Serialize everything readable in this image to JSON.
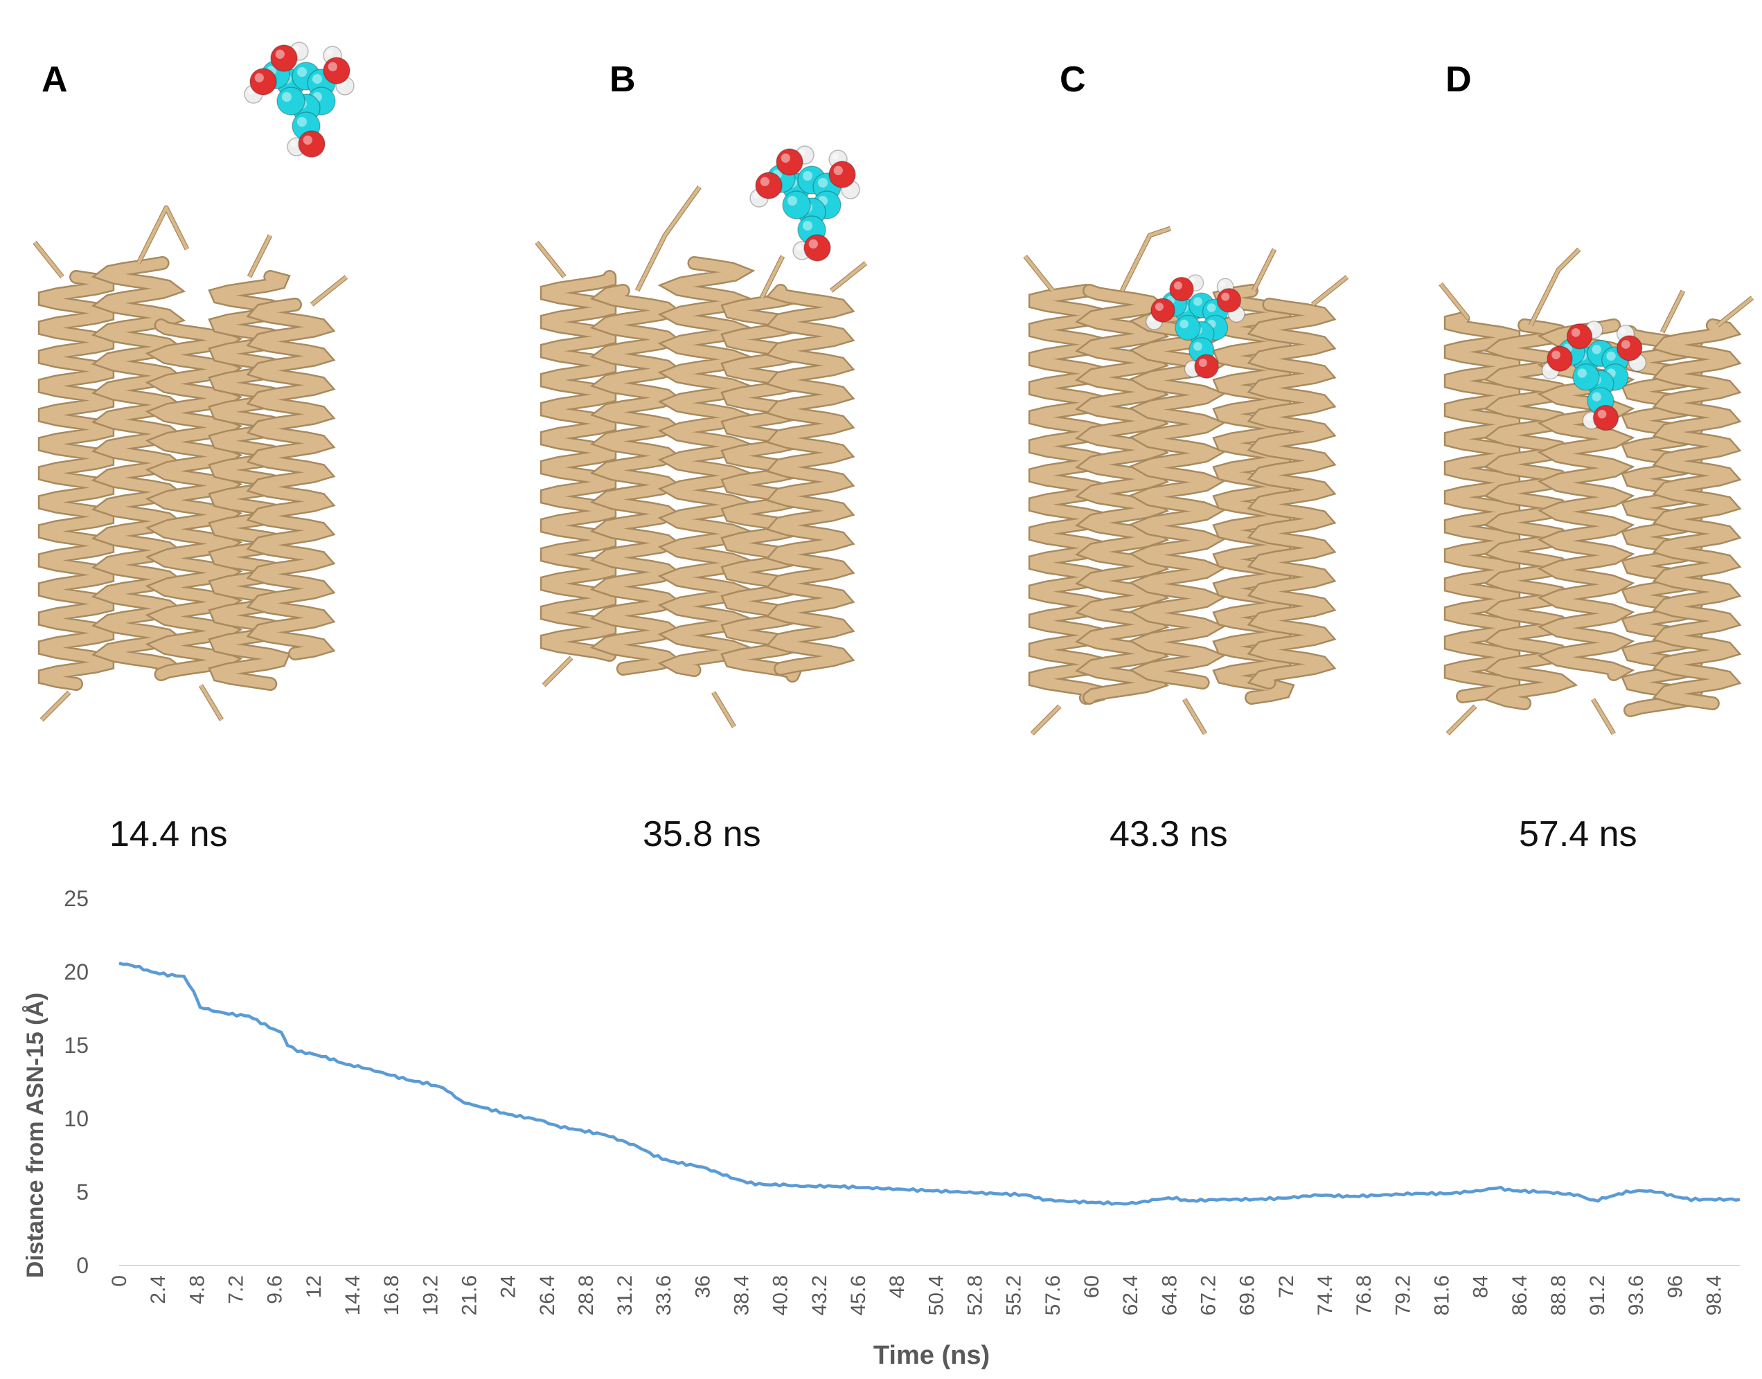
{
  "panels": [
    {
      "letter": "A",
      "time": "14.4 ns"
    },
    {
      "letter": "B",
      "time": "35.8 ns"
    },
    {
      "letter": "C",
      "time": "43.3 ns"
    },
    {
      "letter": "D",
      "time": "57.4 ns"
    }
  ],
  "colors": {
    "ribbon": "#d9b98c",
    "ribbon_edge": "#a88a5e",
    "carbon": "#22d3df",
    "oxygen": "#e03030",
    "hydrogen": "#eeeeee",
    "line": "#5b9bd5",
    "axis_text": "#595959"
  },
  "chart_data": {
    "type": "line",
    "xlabel": "Time (ns)",
    "ylabel": "Distance from ASN-15 (Å)",
    "ylim": [
      0,
      25
    ],
    "yticks": [
      0,
      5,
      10,
      15,
      20,
      25
    ],
    "xlim": [
      0,
      100
    ],
    "xticks": [
      "0",
      "2.4",
      "4.8",
      "7.2",
      "9.6",
      "12",
      "14.4",
      "16.8",
      "19.2",
      "21.6",
      "24",
      "26.4",
      "28.8",
      "31.2",
      "33.6",
      "36",
      "38.4",
      "40.8",
      "43.2",
      "45.6",
      "48",
      "50.4",
      "52.8",
      "55.2",
      "57.6",
      "60",
      "62.4",
      "64.8",
      "67.2",
      "69.6",
      "72",
      "74.4",
      "76.8",
      "79.2",
      "81.6",
      "84",
      "86.4",
      "88.8",
      "91.2",
      "93.6",
      "96",
      "98.4"
    ],
    "grid": false,
    "series": [
      {
        "x": [
          0,
          1,
          2,
          3,
          4,
          4.6,
          5,
          6,
          7,
          8,
          9,
          9.6,
          10,
          10.4,
          11,
          12,
          13,
          14,
          15,
          16,
          17,
          18,
          19,
          20,
          21,
          21.6,
          22,
          23,
          24,
          25,
          26,
          27,
          28,
          29,
          30,
          31,
          32,
          33,
          34,
          35,
          36,
          37,
          38,
          39,
          40,
          41,
          42,
          44,
          46,
          48,
          50,
          52,
          54,
          56,
          57,
          58,
          60,
          62,
          63,
          64,
          65,
          66,
          68,
          70,
          72,
          74,
          76,
          78,
          80,
          82,
          84,
          85,
          86,
          88,
          90,
          91,
          92,
          93,
          94,
          95,
          96,
          97,
          98,
          99,
          100
        ],
        "y": [
          20.6,
          20.4,
          20.0,
          19.8,
          19.7,
          18.6,
          17.6,
          17.3,
          17.1,
          17.0,
          16.4,
          16.1,
          15.9,
          15.0,
          14.6,
          14.4,
          14.1,
          13.7,
          13.5,
          13.2,
          12.9,
          12.6,
          12.4,
          12.1,
          11.3,
          11.0,
          10.9,
          10.6,
          10.3,
          10.1,
          9.9,
          9.5,
          9.3,
          9.1,
          8.9,
          8.5,
          8.1,
          7.5,
          7.1,
          6.9,
          6.7,
          6.3,
          5.9,
          5.6,
          5.5,
          5.5,
          5.4,
          5.4,
          5.3,
          5.2,
          5.1,
          5.0,
          4.9,
          4.8,
          4.5,
          4.4,
          4.3,
          4.2,
          4.3,
          4.5,
          4.6,
          4.4,
          4.5,
          4.5,
          4.6,
          4.8,
          4.7,
          4.8,
          4.9,
          4.9,
          5.1,
          5.3,
          5.1,
          5.0,
          4.8,
          4.4,
          4.7,
          5.0,
          5.1,
          5.0,
          4.7,
          4.5,
          4.5,
          4.5,
          4.5
        ]
      }
    ]
  }
}
